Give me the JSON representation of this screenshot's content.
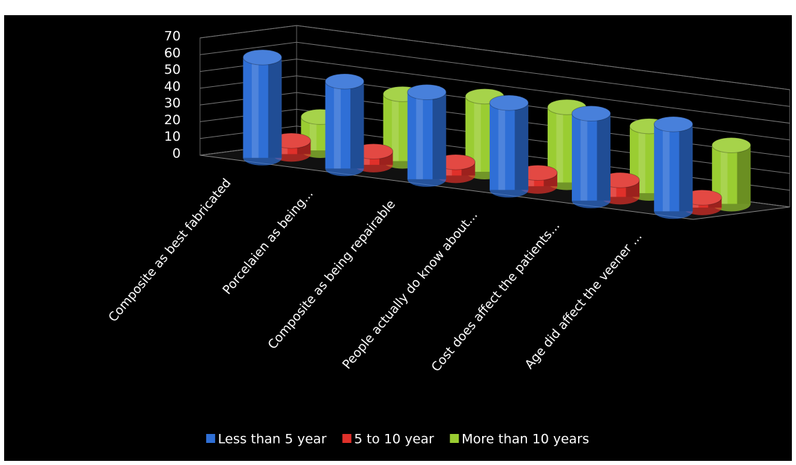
{
  "chart_data": {
    "type": "bar3d",
    "categories": [
      "Composite as best fabricated",
      "Porcelaien as being...",
      "Composite as being repairable",
      "People actually do know about...",
      "Cost does affect the patients...",
      "Age did affect the veener ..."
    ],
    "series": [
      {
        "name": "Less than 5 year",
        "color": "#2f6fd6",
        "values": [
          60,
          52,
          52,
          52,
          52,
          52
        ]
      },
      {
        "name": "5 to 10 year",
        "color": "#e0302a",
        "values": [
          8,
          8,
          8,
          8,
          10,
          6
        ]
      },
      {
        "name": "More than 10 years",
        "color": "#9acd32",
        "values": [
          20,
          40,
          45,
          45,
          40,
          35
        ]
      }
    ],
    "ylim": [
      0,
      70
    ],
    "yticks": [
      0,
      10,
      20,
      30,
      40,
      50,
      60,
      70
    ],
    "grid": true,
    "legend": "bottom"
  }
}
